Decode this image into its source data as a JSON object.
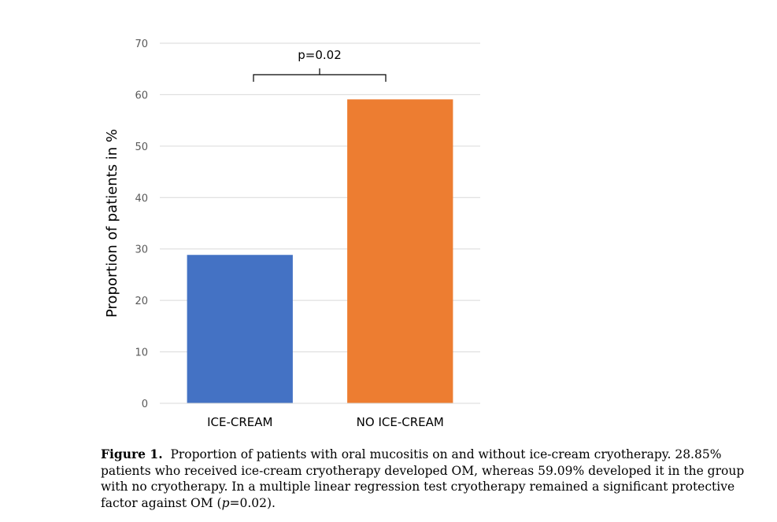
{
  "chart_data": {
    "type": "bar",
    "categories": [
      "ICE-CREAM",
      "NO ICE-CREAM"
    ],
    "values": [
      28.85,
      59.09
    ],
    "colors": [
      "#4472C4",
      "#ED7D31"
    ],
    "ylabel": "Proportion of patients in %",
    "xlabel": "",
    "ylim": [
      0,
      70
    ],
    "yticks": [
      0,
      10,
      20,
      30,
      40,
      50,
      60,
      70
    ],
    "grid": true,
    "annotation": "p=0.02"
  },
  "caption": {
    "label": "Figure 1.",
    "text_before_p": "Proportion of patients with oral mucositis on and without ice-cream cryotherapy. 28.85% patients who received ice-cream cryotherapy developed OM, whereas 59.09% developed it in the group with no cryotherapy. In a multiple linear regression test cryotherapy remained a significant protective factor against OM (",
    "p_symbol": "p",
    "text_after_p": "=0.02)."
  }
}
